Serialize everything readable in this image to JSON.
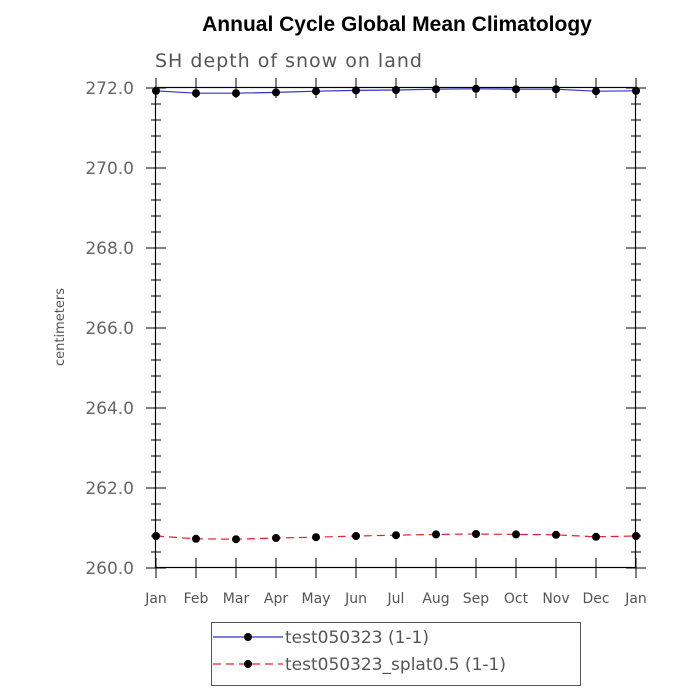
{
  "chart_data": {
    "type": "line",
    "title": "Annual Cycle Global Mean Climatology",
    "subtitle": "SH depth of snow on land",
    "xlabel": "",
    "ylabel": "centimeters",
    "categories": [
      "Jan",
      "Feb",
      "Mar",
      "Apr",
      "May",
      "Jun",
      "Jul",
      "Aug",
      "Sep",
      "Oct",
      "Nov",
      "Dec",
      "Jan"
    ],
    "ylim": [
      260.0,
      272.0
    ],
    "yticks": [
      260.0,
      262.0,
      264.0,
      266.0,
      268.0,
      270.0,
      272.0
    ],
    "ytick_labels": [
      "260.0",
      "262.0",
      "264.0",
      "266.0",
      "268.0",
      "270.0",
      "272.0"
    ],
    "series": [
      {
        "name": "test050323 (1-1)",
        "color": "#3333cc",
        "dash": "solid",
        "marker_color": "#000000",
        "values": [
          271.93,
          271.87,
          271.87,
          271.89,
          271.92,
          271.94,
          271.95,
          271.97,
          271.98,
          271.97,
          271.97,
          271.92,
          271.93
        ]
      },
      {
        "name": "test050323_splat0.5 (1-1)",
        "color": "#e8202a",
        "dash": "dashed",
        "marker_color": "#000000",
        "values": [
          260.8,
          260.73,
          260.72,
          260.75,
          260.77,
          260.8,
          260.82,
          260.84,
          260.85,
          260.84,
          260.83,
          260.78,
          260.8
        ]
      }
    ],
    "legend_position": "bottom-center",
    "grid": false
  }
}
